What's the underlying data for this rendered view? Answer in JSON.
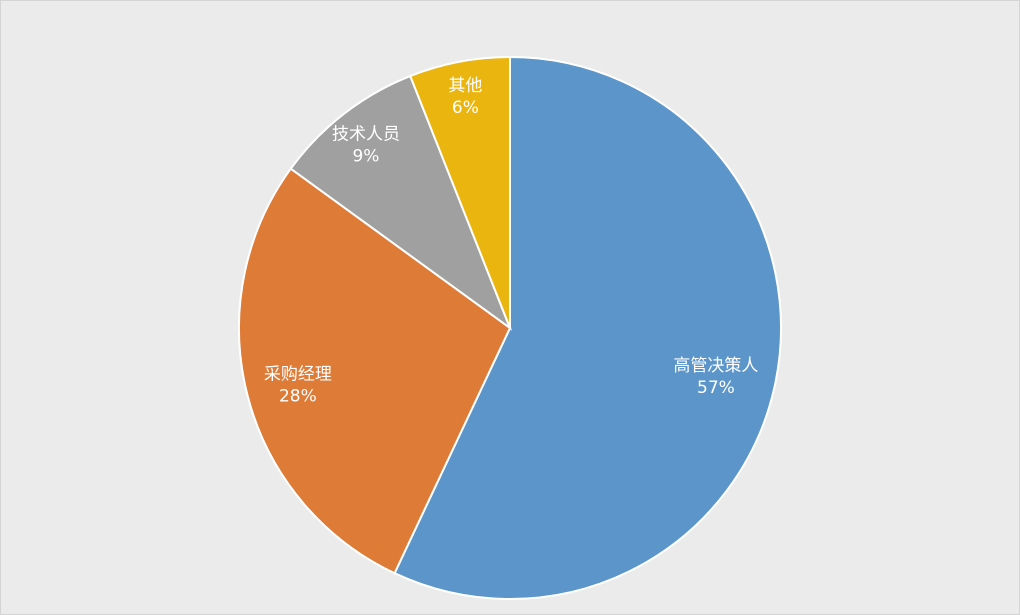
{
  "chart_data": {
    "type": "pie",
    "title": "",
    "start": "top",
    "direction": "clockwise",
    "slices": [
      {
        "label": "高管决策人",
        "value": 57,
        "value_label": "57%",
        "color": "#5b95c9"
      },
      {
        "label": "采购经理",
        "value": 28,
        "value_label": "28%",
        "color": "#dd7b37"
      },
      {
        "label": "技术人员",
        "value": 9,
        "value_label": "9%",
        "color": "#a0a0a0"
      },
      {
        "label": "其他",
        "value": 6,
        "value_label": "6%",
        "color": "#ebb510"
      }
    ],
    "legend": "none",
    "background": "#ebebeb"
  }
}
